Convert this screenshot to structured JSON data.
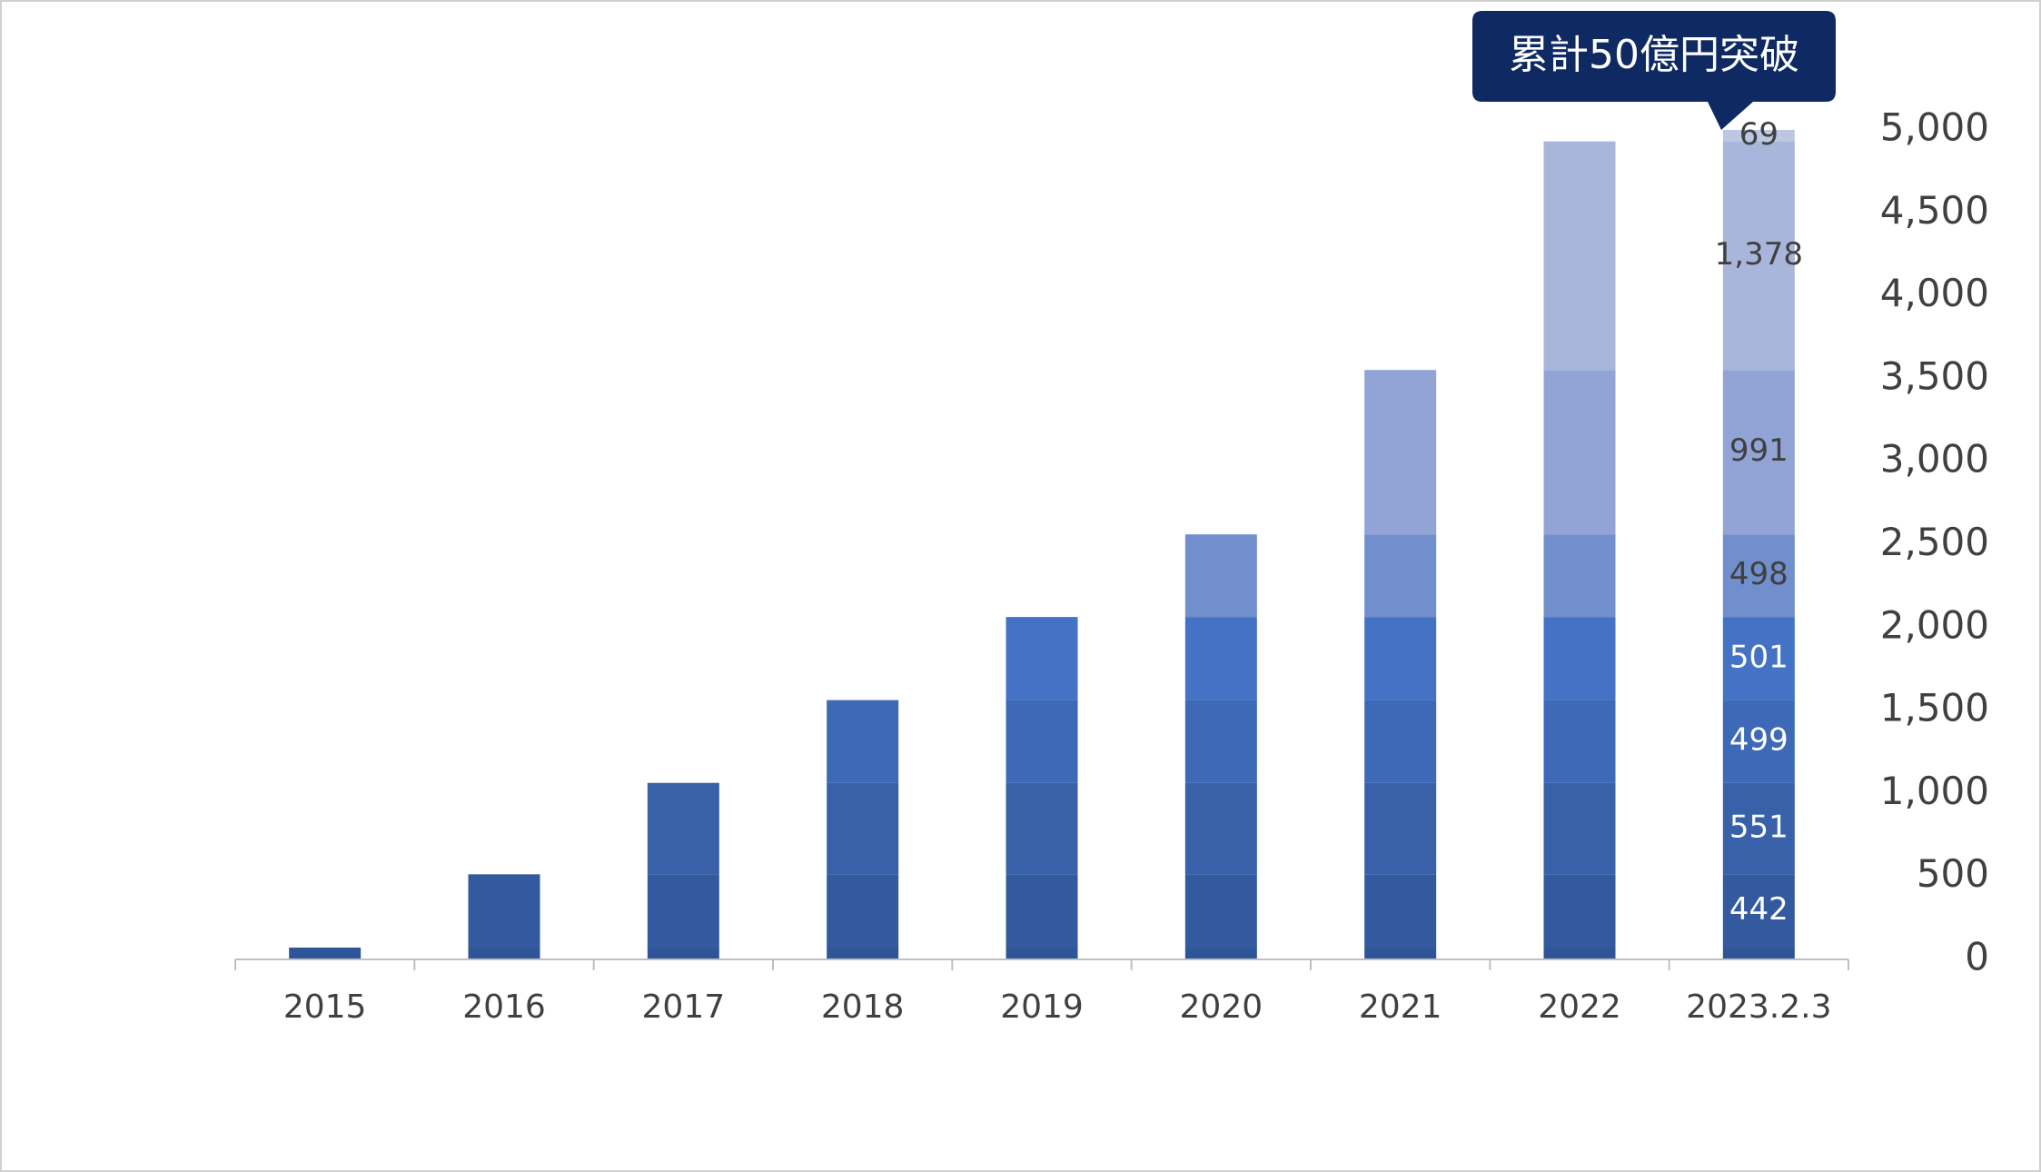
{
  "chart_data": {
    "type": "stacked_bar",
    "annotation": "累計50億円突破",
    "categories": [
      "2015",
      "2016",
      "2017",
      "2018",
      "2019",
      "2020",
      "2021",
      "2022",
      "2023.2.3"
    ],
    "series": [
      {
        "color": "#2e5597",
        "values": [
          71,
          71,
          71,
          71,
          71,
          71,
          71,
          71,
          71
        ]
      },
      {
        "color": "#335a9e",
        "values": [
          null,
          442,
          442,
          442,
          442,
          442,
          442,
          442,
          442
        ],
        "value_labels": [
          null,
          null,
          null,
          null,
          null,
          null,
          null,
          null,
          "442"
        ]
      },
      {
        "color": "#3861aa",
        "values": [
          null,
          null,
          551,
          551,
          551,
          551,
          551,
          551,
          551
        ],
        "value_labels": [
          null,
          null,
          null,
          null,
          null,
          null,
          null,
          null,
          "551"
        ]
      },
      {
        "color": "#3d69b6",
        "values": [
          null,
          null,
          null,
          499,
          499,
          499,
          499,
          499,
          499
        ],
        "value_labels": [
          null,
          null,
          null,
          null,
          null,
          null,
          null,
          null,
          "499"
        ]
      },
      {
        "color": "#4472c4",
        "values": [
          null,
          null,
          null,
          null,
          501,
          501,
          501,
          501,
          501
        ],
        "value_labels": [
          null,
          null,
          null,
          null,
          null,
          null,
          null,
          null,
          "501"
        ]
      },
      {
        "color": "#718ecd",
        "values": [
          null,
          null,
          null,
          null,
          null,
          498,
          498,
          498,
          498
        ],
        "value_labels": [
          null,
          null,
          null,
          null,
          null,
          null,
          null,
          null,
          "498"
        ]
      },
      {
        "color": "#91a4d5",
        "values": [
          null,
          null,
          null,
          null,
          null,
          null,
          991,
          991,
          991
        ],
        "value_labels": [
          null,
          null,
          null,
          null,
          null,
          null,
          null,
          null,
          "991"
        ]
      },
      {
        "color": "#a8b6db",
        "values": [
          null,
          null,
          null,
          null,
          null,
          null,
          null,
          1378,
          1378
        ],
        "value_labels": [
          null,
          null,
          null,
          null,
          null,
          null,
          null,
          null,
          "1,378"
        ]
      },
      {
        "color": "#bcc7e2",
        "values": [
          null,
          null,
          null,
          null,
          null,
          null,
          null,
          null,
          69
        ],
        "value_labels": [
          null,
          null,
          null,
          null,
          null,
          null,
          null,
          null,
          "69"
        ]
      }
    ],
    "ylim": [
      0,
      5000
    ],
    "yticks": [
      0,
      500,
      {
        "value": 1000,
        "label": "1,000"
      },
      {
        "value": 1500,
        "label": "1,500"
      },
      {
        "value": 2000,
        "label": "2,000"
      },
      {
        "value": 2500,
        "label": "2,500"
      },
      {
        "value": 3000,
        "label": "3,000"
      },
      {
        "value": 3500,
        "label": "3,500"
      },
      {
        "value": 4000,
        "label": "4,000"
      },
      {
        "value": 4500,
        "label": "4,500"
      },
      {
        "value": 5000,
        "label": "5,000"
      }
    ],
    "y_axis_side": "right"
  }
}
